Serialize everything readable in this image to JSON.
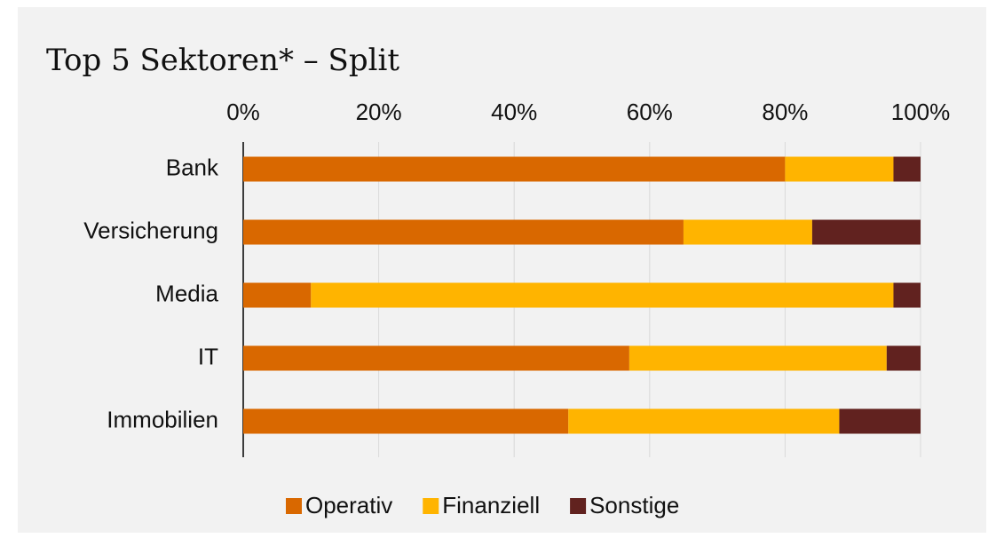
{
  "chart_data": {
    "type": "stacked-bar-horizontal",
    "title": "Top 5 Sektoren* – Split",
    "categories": [
      "Bank",
      "Versicherung",
      "Media",
      "IT",
      "Immobilien"
    ],
    "series": [
      {
        "name": "Operativ",
        "color": "#d96800",
        "values": [
          80,
          65,
          10,
          57,
          48
        ]
      },
      {
        "name": "Finanziell",
        "color": "#ffb400",
        "values": [
          16,
          19,
          86,
          38,
          40
        ]
      },
      {
        "name": "Sonstige",
        "color": "#61221f",
        "values": [
          4,
          16,
          4,
          5,
          12
        ]
      }
    ],
    "xlim": [
      0,
      100
    ],
    "xticks": [
      {
        "value": 0,
        "label": "0%"
      },
      {
        "value": 20,
        "label": "20%"
      },
      {
        "value": 40,
        "label": "40%"
      },
      {
        "value": 60,
        "label": "60%"
      },
      {
        "value": 80,
        "label": "80%"
      },
      {
        "value": 100,
        "label": "100%"
      }
    ],
    "grid": true,
    "legend": "bottom"
  }
}
